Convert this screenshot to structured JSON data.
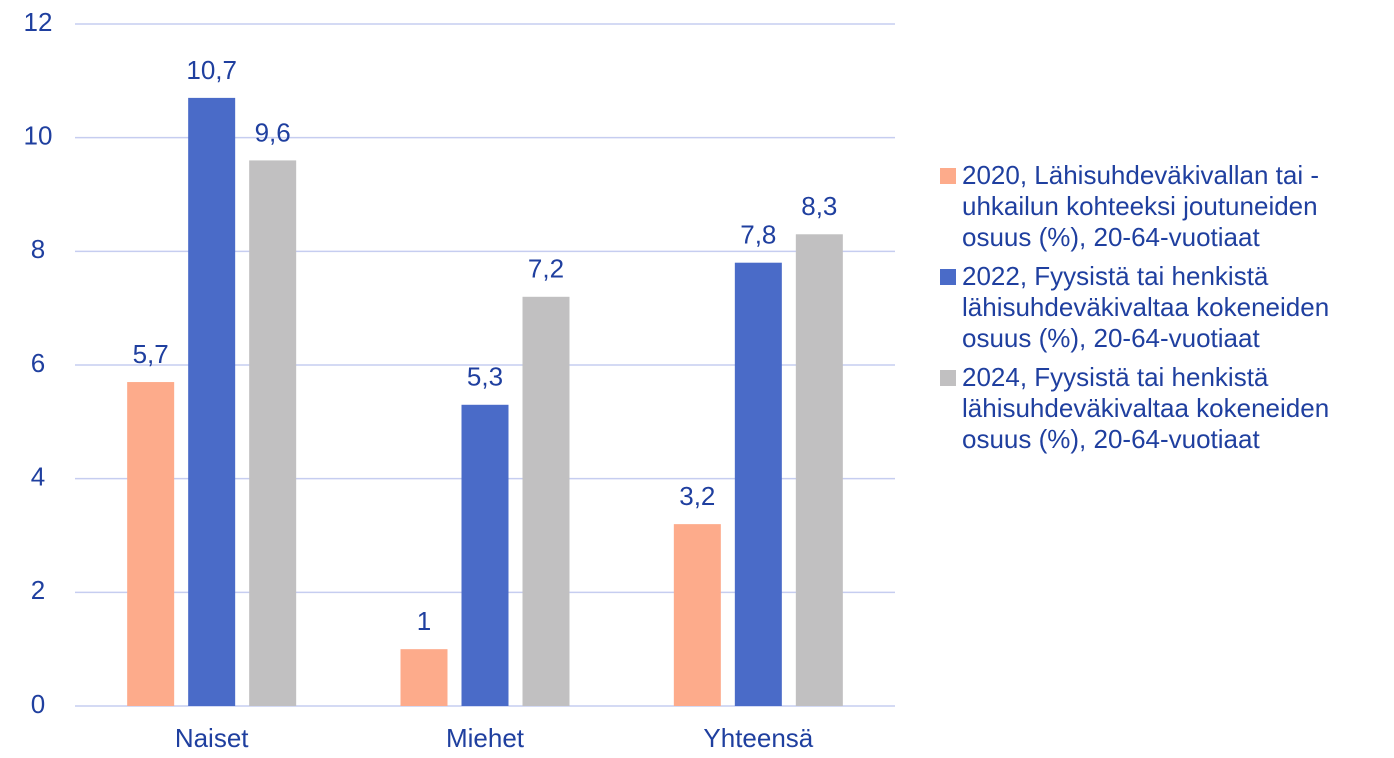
{
  "chart_data": {
    "type": "bar",
    "categories": [
      "Naiset",
      "Miehet",
      "Yhteensä"
    ],
    "series": [
      {
        "name": "2020,  Lähisuhdeväkivallan tai -uhkailun kohteeksi joutuneiden osuus (%), 20-64-vuotiaat",
        "color": "#fdab8b",
        "values": [
          5.7,
          1,
          3.2
        ],
        "value_labels": [
          "5,7",
          "1",
          "3,2"
        ]
      },
      {
        "name": "2022, Fyysistä tai henkistä lähisuhdeväkivaltaa kokeneiden osuus (%), 20-64-vuotiaat",
        "color": "#4a6bc8",
        "values": [
          10.7,
          5.3,
          7.8
        ],
        "value_labels": [
          "10,7",
          "5,3",
          "7,8"
        ]
      },
      {
        "name": "2024, Fyysistä tai henkistä lähisuhdeväkivaltaa kokeneiden osuus (%), 20-64-vuotiaat",
        "color": "#c1c0c1",
        "values": [
          9.6,
          7.2,
          8.3
        ],
        "value_labels": [
          "9,6",
          "7,2",
          "8,3"
        ]
      }
    ],
    "ylim": [
      0,
      12
    ],
    "yticks": [
      0,
      2,
      4,
      6,
      8,
      10,
      12
    ],
    "grid": true,
    "legend": "right"
  }
}
